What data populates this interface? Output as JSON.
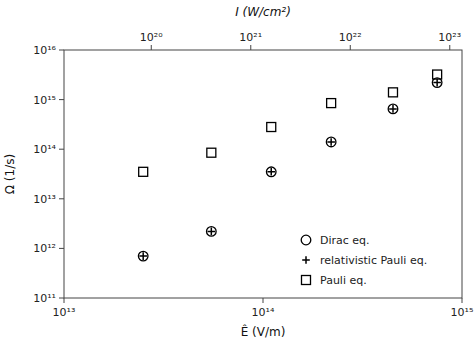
{
  "chart_data": {
    "type": "scatter",
    "x_label": "Ê (V/m)",
    "x2_label": "I (W/cm²)",
    "y_label": "Ω (1/s)",
    "log": true,
    "legend": "lower right",
    "xlim": [
      10000000000000.0,
      1000000000000000.0
    ],
    "xticks": [
      {
        "value": 10000000000000.0,
        "label": "10¹³"
      },
      {
        "value": 100000000000000.0,
        "label": "10¹⁴"
      },
      {
        "value": 1000000000000000.0,
        "label": "10¹⁵"
      }
    ],
    "x2lim": [
      1.327e+19,
      1.327e+23
    ],
    "x2ticks": [
      {
        "value": 1e+20,
        "label": "10²⁰"
      },
      {
        "value": 1e+21,
        "label": "10²¹"
      },
      {
        "value": 1e+22,
        "label": "10²²"
      },
      {
        "value": 1e+23,
        "label": "10²³"
      }
    ],
    "ylim": [
      100000000000.0,
      1e+16
    ],
    "yticks": [
      {
        "value": 100000000000.0,
        "label": "10¹¹"
      },
      {
        "value": 1000000000000.0,
        "label": "10¹²"
      },
      {
        "value": 10000000000000.0,
        "label": "10¹³"
      },
      {
        "value": 100000000000000.0,
        "label": "10¹⁴"
      },
      {
        "value": 1000000000000000.0,
        "label": "10¹⁵"
      },
      {
        "value": 1e+16,
        "label": "10¹⁶"
      }
    ],
    "x": [
      25000000000000.0,
      55000000000000.0,
      110000000000000.0,
      220000000000000.0,
      450000000000000.0,
      750000000000000.0
    ],
    "series": [
      {
        "name": "Dirac eq.",
        "color": "black",
        "marker": "circle",
        "values": [
          700000000000.0,
          2200000000000.0,
          35000000000000.0,
          140000000000000.0,
          650000000000000.0,
          2200000000000000.0
        ]
      },
      {
        "name": "relativistic Pauli eq.",
        "color": "black",
        "marker": "plus",
        "values": [
          700000000000.0,
          2200000000000.0,
          35000000000000.0,
          140000000000000.0,
          650000000000000.0,
          2200000000000000.0
        ]
      },
      {
        "name": "Pauli eq.",
        "color": "black",
        "marker": "square",
        "values": [
          35000000000000.0,
          85000000000000.0,
          280000000000000.0,
          850000000000000.0,
          1400000000000000.0,
          3200000000000000.0
        ]
      }
    ]
  }
}
